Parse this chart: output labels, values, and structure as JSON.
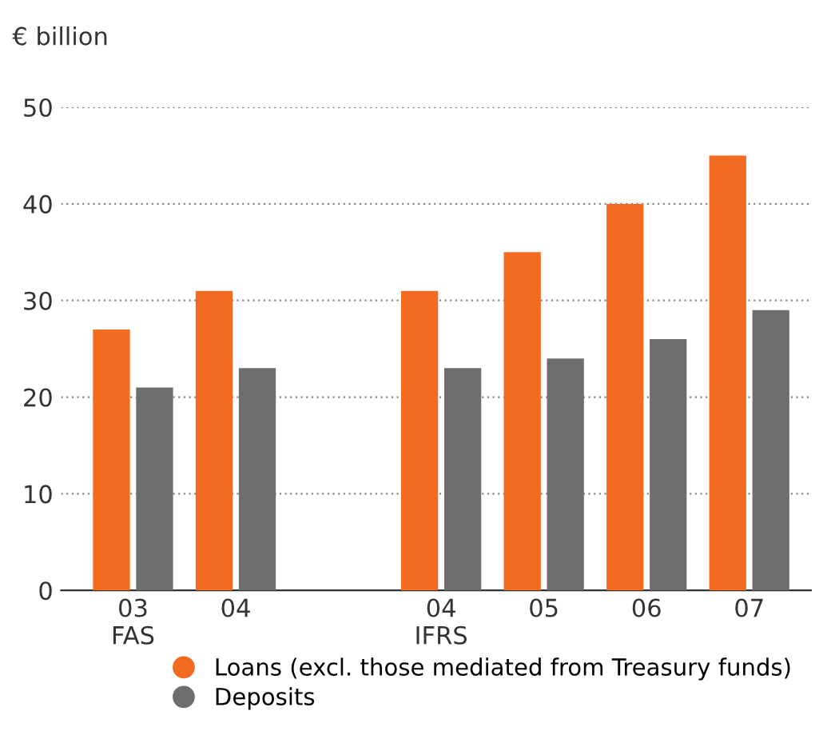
{
  "chart_data": {
    "type": "bar",
    "ylabel": "€ billion",
    "categories": [
      "03\nFAS",
      "04",
      null,
      "04\nIFRS",
      "05",
      "06",
      "07"
    ],
    "series": [
      {
        "name": "Loans (excl. those mediated from Treasury funds)",
        "color": "#f26b21",
        "values": [
          27,
          31,
          null,
          31,
          35,
          40,
          45
        ]
      },
      {
        "name": "Deposits",
        "color": "#6d6e70",
        "values": [
          21,
          23,
          null,
          23,
          24,
          26,
          29
        ]
      }
    ],
    "ylim": [
      0,
      50
    ],
    "yticks": [
      0,
      10,
      20,
      30,
      40,
      50
    ],
    "grid": "y",
    "legend": "bottom"
  }
}
